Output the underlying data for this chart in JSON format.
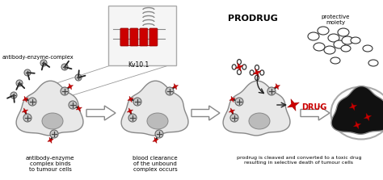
{
  "bg_color": "#ffffff",
  "cell_color": "#e8e8e8",
  "cell_edge_color": "#888888",
  "cell_dark_color": "#111111",
  "nucleus_color": "#bbbbbb",
  "nucleus_edge": "#888888",
  "red_color": "#cc0000",
  "text_color": "#000000",
  "title_prodrug": "PRODRUG",
  "label_protective": "protective\nmoiety",
  "label_drug": "DRUG",
  "label_antibody_complex": "antibody-enzyme-complex",
  "label_kv": "Kv10.1",
  "label_bottom1": "antibody-enzyme\ncomplex binds\nto tumour cells",
  "label_bottom2": "blood clearance\nof the unbound\ncomplex occurs",
  "label_bottom3": "prodrug is cleaved and converted to a toxic drug\nresulting in selective death of tumour cells",
  "inset_bg": "#f5f5f5",
  "inset_edge": "#aaaaaa",
  "sphere_color": "#c8c8c8",
  "sphere_edge": "#666666"
}
